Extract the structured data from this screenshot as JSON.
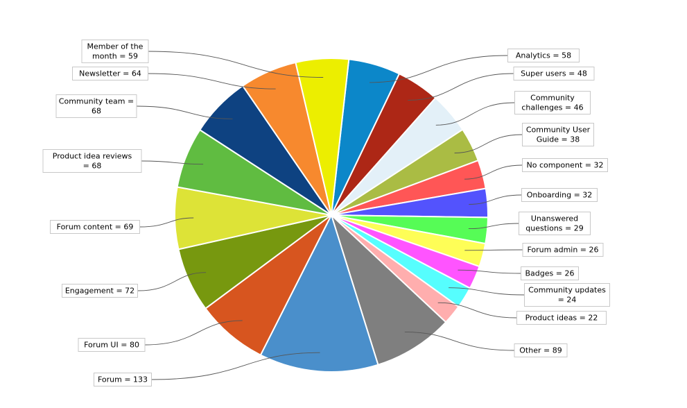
{
  "chart_data": {
    "type": "pie",
    "title": "",
    "slices": [
      {
        "label": "Analytics = 58",
        "value": 58,
        "color": "#0c87c9"
      },
      {
        "label": "Super users = 48",
        "value": 48,
        "color": "#ad2716"
      },
      {
        "label": "Community challenges = 46",
        "value": 46,
        "color": "#e3f0f8"
      },
      {
        "label": "Community User Guide = 38",
        "value": 38,
        "color": "#aabc44"
      },
      {
        "label": "No component = 32",
        "value": 32,
        "color": "#ff5656"
      },
      {
        "label": "Onboarding = 32",
        "value": 32,
        "color": "#5353fd"
      },
      {
        "label": "Unanswered questions = 29",
        "value": 29,
        "color": "#56fc56"
      },
      {
        "label": "Forum admin = 26",
        "value": 26,
        "color": "#fefe57"
      },
      {
        "label": "Badges = 26",
        "value": 26,
        "color": "#ff54ff"
      },
      {
        "label": "Community updates = 24",
        "value": 24,
        "color": "#56fefe"
      },
      {
        "label": "Product ideas = 22",
        "value": 22,
        "color": "#ffaeae"
      },
      {
        "label": "Other = 89",
        "value": 89,
        "color": "#7f7f7f"
      },
      {
        "label": "Forum = 133",
        "value": 133,
        "color": "#4a8fcb"
      },
      {
        "label": "Forum UI = 80",
        "value": 80,
        "color": "#d7551f"
      },
      {
        "label": "Engagement = 72",
        "value": 72,
        "color": "#77980f"
      },
      {
        "label": "Forum content = 69",
        "value": 69,
        "color": "#dde337"
      },
      {
        "label": "Product idea reviews = 68",
        "value": 68,
        "color": "#60bc41"
      },
      {
        "label": "Community team = 68",
        "value": 68,
        "color": "#0e4281"
      },
      {
        "label": "Newsletter = 64",
        "value": 64,
        "color": "#f7892e"
      },
      {
        "label": "Member of the month = 59",
        "value": 59,
        "color": "#ecee00"
      }
    ],
    "display_labels": [
      [
        "Analytics = 58"
      ],
      [
        "Super users = 48"
      ],
      [
        "Community",
        "challenges = 46"
      ],
      [
        "Community User",
        "Guide = 38"
      ],
      [
        "No component = 32"
      ],
      [
        "Onboarding = 32"
      ],
      [
        "Unanswered",
        "questions = 29"
      ],
      [
        "Forum admin = 26"
      ],
      [
        "Badges = 26"
      ],
      [
        "Community updates",
        "= 24"
      ],
      [
        "Product ideas = 22"
      ],
      [
        "Other = 89"
      ],
      [
        "Forum = 133"
      ],
      [
        "Forum UI = 80"
      ],
      [
        "Engagement = 72"
      ],
      [
        "Forum content = 69"
      ],
      [
        "Product idea reviews",
        "= 68"
      ],
      [
        "Community team =",
        "68"
      ],
      [
        "Newsletter = 64"
      ],
      [
        "Member of the",
        "month = 59"
      ]
    ]
  }
}
